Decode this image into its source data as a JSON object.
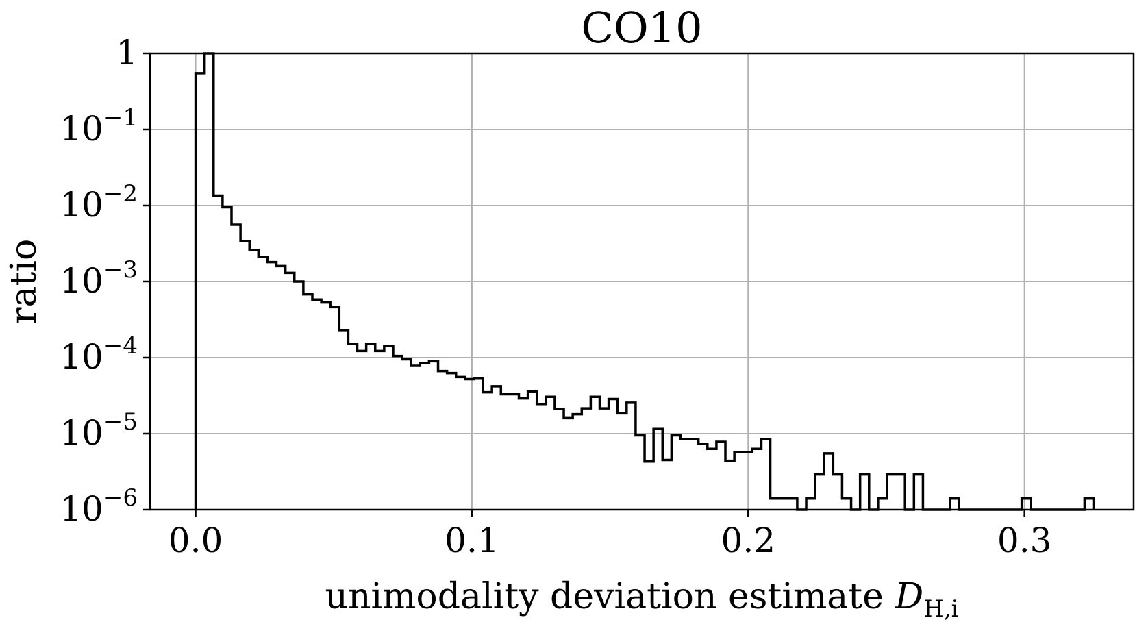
{
  "chart_data": {
    "type": "histogram-step",
    "title": "CO10",
    "xlabel_text": "unimodality deviation estimate ",
    "xlabel_var": "D",
    "xlabel_sub": "H,i",
    "ylabel": "ratio",
    "yscale": "log",
    "xlim": [
      -0.0165,
      0.3395
    ],
    "ylim_exp": [
      -6,
      0
    ],
    "xticks": [
      {
        "value": 0.0,
        "label": "0.0"
      },
      {
        "value": 0.1,
        "label": "0.1"
      },
      {
        "value": 0.2,
        "label": "0.2"
      },
      {
        "value": 0.3,
        "label": "0.3"
      }
    ],
    "yticks": [
      {
        "exp": 0,
        "base": "1",
        "sup": ""
      },
      {
        "exp": -1,
        "base": "10",
        "sup": "−1"
      },
      {
        "exp": -2,
        "base": "10",
        "sup": "−2"
      },
      {
        "exp": -3,
        "base": "10",
        "sup": "−3"
      },
      {
        "exp": -4,
        "base": "10",
        "sup": "−4"
      },
      {
        "exp": -5,
        "base": "10",
        "sup": "−5"
      },
      {
        "exp": -6,
        "base": "10",
        "sup": "−6"
      }
    ],
    "bin_width": 0.00325,
    "bin_start": 0.0,
    "values": [
      0.55,
      1.0,
      0.0135,
      0.0095,
      0.0056,
      0.0034,
      0.0026,
      0.0021,
      0.0018,
      0.0016,
      0.0013,
      0.001,
      0.00068,
      0.00058,
      0.00053,
      0.00046,
      0.00023,
      0.000152,
      0.000122,
      0.000152,
      0.000122,
      0.000142,
      0.000105,
      9.5e-05,
      7.8e-05,
      8.45e-05,
      8.95e-05,
      6.65e-05,
      6.25e-05,
      5.55e-05,
      5.2e-05,
      5.4e-05,
      3.5e-05,
      4.2e-05,
      3.3e-05,
      3.3e-05,
      2.9e-05,
      3.6e-05,
      2.45e-05,
      3.05e-05,
      2.1e-05,
      1.6e-05,
      1.8e-05,
      2.15e-05,
      3.05e-05,
      2.15e-05,
      2.85e-05,
      1.85e-05,
      2.55e-05,
      9.5e-06,
      4.3e-06,
      1.15e-05,
      4.5e-06,
      9.5e-06,
      8.5e-06,
      8.5e-06,
      7.3e-06,
      6.3e-06,
      7.8e-06,
      4.4e-06,
      5.7e-06,
      5.7e-06,
      6.3e-06,
      8.5e-06,
      1.4e-06,
      1.4e-06,
      1.4e-06,
      1e-06,
      1.4e-06,
      2.9e-06,
      5.5e-06,
      2.9e-06,
      1.4e-06,
      1e-06,
      2.9e-06,
      1e-06,
      1.4e-06,
      2.9e-06,
      2.9e-06,
      1e-06,
      2.9e-06,
      1e-06,
      1e-06,
      1e-06,
      1.4e-06,
      1e-06,
      1e-06,
      1e-06,
      1e-06,
      1e-06,
      1e-06,
      1e-06,
      1.4e-06,
      1e-06,
      1e-06,
      1e-06,
      1e-06,
      1e-06,
      1e-06,
      1.4e-06
    ]
  },
  "colors": {
    "background": "#ffffff",
    "line": "#000000",
    "grid": "#b0b0b0"
  }
}
